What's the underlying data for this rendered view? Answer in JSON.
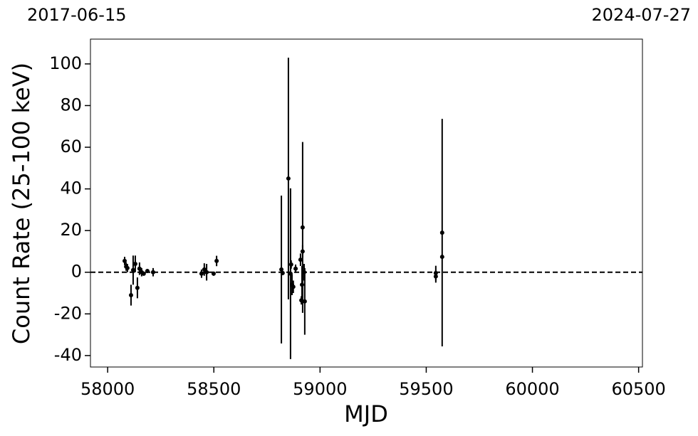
{
  "chart_data": {
    "type": "errorbar",
    "top_left_label": "2017-06-15",
    "top_right_label": "2024-07-27",
    "xlabel": "MJD",
    "ylabel": "Count Rate (25-100 keV)",
    "xlim": [
      57919,
      60518
    ],
    "ylim": [
      -45.5,
      111.9
    ],
    "xticks": [
      58000,
      58500,
      59000,
      59500,
      60000,
      60500
    ],
    "yticks": [
      -40,
      -20,
      0,
      20,
      40,
      60,
      80,
      100
    ],
    "hline": 0,
    "color": "#000000",
    "series": [
      {
        "x": [
          58080,
          58087,
          58093,
          58110,
          58120,
          58130,
          58140,
          58150,
          58160,
          58170,
          58187,
          58214,
          58442,
          58455,
          58466,
          58499,
          58513,
          58818,
          58824,
          58851,
          58861,
          58864,
          58868,
          58874,
          58885,
          58908,
          58912,
          58915,
          58918,
          58918,
          58925,
          58928,
          59545,
          59545,
          59575,
          59575
        ],
        "values": [
          5.4,
          2.7,
          2,
          -11,
          1,
          4,
          -7.5,
          1.7,
          0,
          -0.7,
          0.6,
          0,
          -0.7,
          1.3,
          0,
          -0.7,
          5.4,
          1.3,
          -0.4,
          45,
          -0.7,
          3.7,
          -6,
          -7,
          1.7,
          6,
          -13.5,
          -6,
          10,
          21.5,
          0,
          -14,
          -0.4,
          -2,
          7.4,
          19
        ],
        "errors": [
          2,
          2,
          2,
          5,
          7,
          4,
          5,
          3,
          2,
          1,
          1,
          2,
          2,
          3,
          4,
          1,
          2.5,
          35.5,
          1,
          58,
          41,
          2,
          5,
          3,
          2,
          3,
          2,
          9,
          3,
          41,
          4,
          16,
          3.5,
          3,
          1,
          54.6
        ]
      }
    ]
  }
}
